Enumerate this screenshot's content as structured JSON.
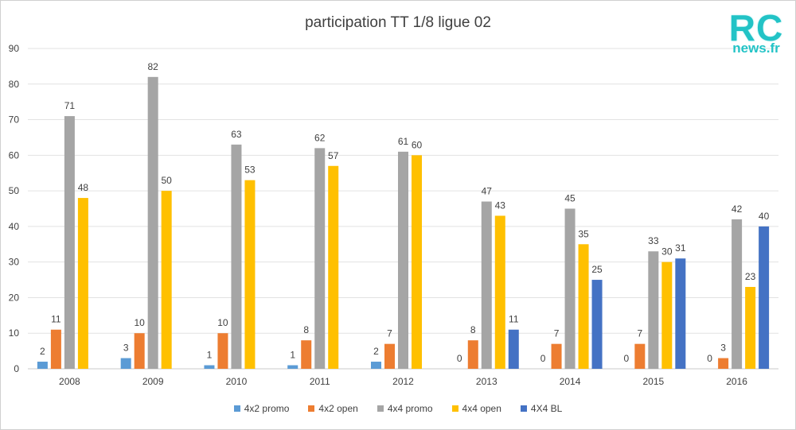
{
  "chart_data": {
    "type": "bar",
    "title": "participation TT 1/8 ligue 02",
    "categories": [
      "2008",
      "2009",
      "2010",
      "2011",
      "2012",
      "2013",
      "2014",
      "2015",
      "2016"
    ],
    "ylim": [
      0,
      90
    ],
    "yticks": [
      0,
      10,
      20,
      30,
      40,
      50,
      60,
      70,
      80,
      90
    ],
    "grid": true,
    "legend_position": "bottom",
    "series": [
      {
        "name": "4x2 promo",
        "color": "#5b9bd5",
        "values": [
          2,
          3,
          1,
          1,
          2,
          0,
          0,
          0,
          0
        ]
      },
      {
        "name": "4x2 open",
        "color": "#ed7d31",
        "values": [
          11,
          10,
          10,
          8,
          7,
          8,
          7,
          7,
          3
        ]
      },
      {
        "name": "4x4 promo",
        "color": "#a5a5a5",
        "values": [
          71,
          82,
          63,
          62,
          61,
          47,
          45,
          33,
          42
        ]
      },
      {
        "name": "4x4 open",
        "color": "#ffc000",
        "values": [
          48,
          50,
          53,
          57,
          60,
          43,
          35,
          30,
          23
        ]
      },
      {
        "name": "4X4 BL",
        "color": "#4472c4",
        "values": [
          null,
          null,
          null,
          null,
          null,
          11,
          25,
          31,
          40
        ]
      }
    ]
  },
  "logo": {
    "text_top": "RC",
    "text_bottom": "news.fr"
  }
}
